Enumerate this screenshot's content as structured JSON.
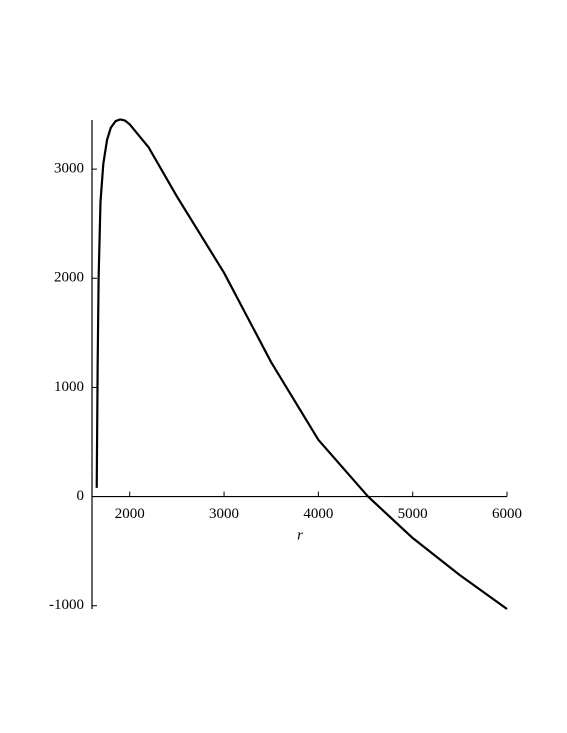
{
  "chart_data": {
    "type": "line",
    "x_label": "r",
    "x": [
      1650,
      1660,
      1670,
      1690,
      1720,
      1760,
      1800,
      1850,
      1900,
      1950,
      2000,
      2200,
      2500,
      3000,
      3500,
      4000,
      4527,
      5000,
      5500,
      6000
    ],
    "values": [
      80,
      1200,
      2000,
      2700,
      3050,
      3270,
      3380,
      3440,
      3455,
      3445,
      3410,
      3200,
      2750,
      2050,
      1230,
      520,
      0,
      -380,
      -720,
      -1030
    ],
    "color": "#000000",
    "xlim": [
      1600,
      6000
    ],
    "ylim": [
      -1030,
      3450
    ],
    "xticks": [
      2000,
      3000,
      4000,
      5000,
      6000
    ],
    "yticks": [
      -1000,
      0,
      1000,
      2000,
      3000
    ]
  }
}
